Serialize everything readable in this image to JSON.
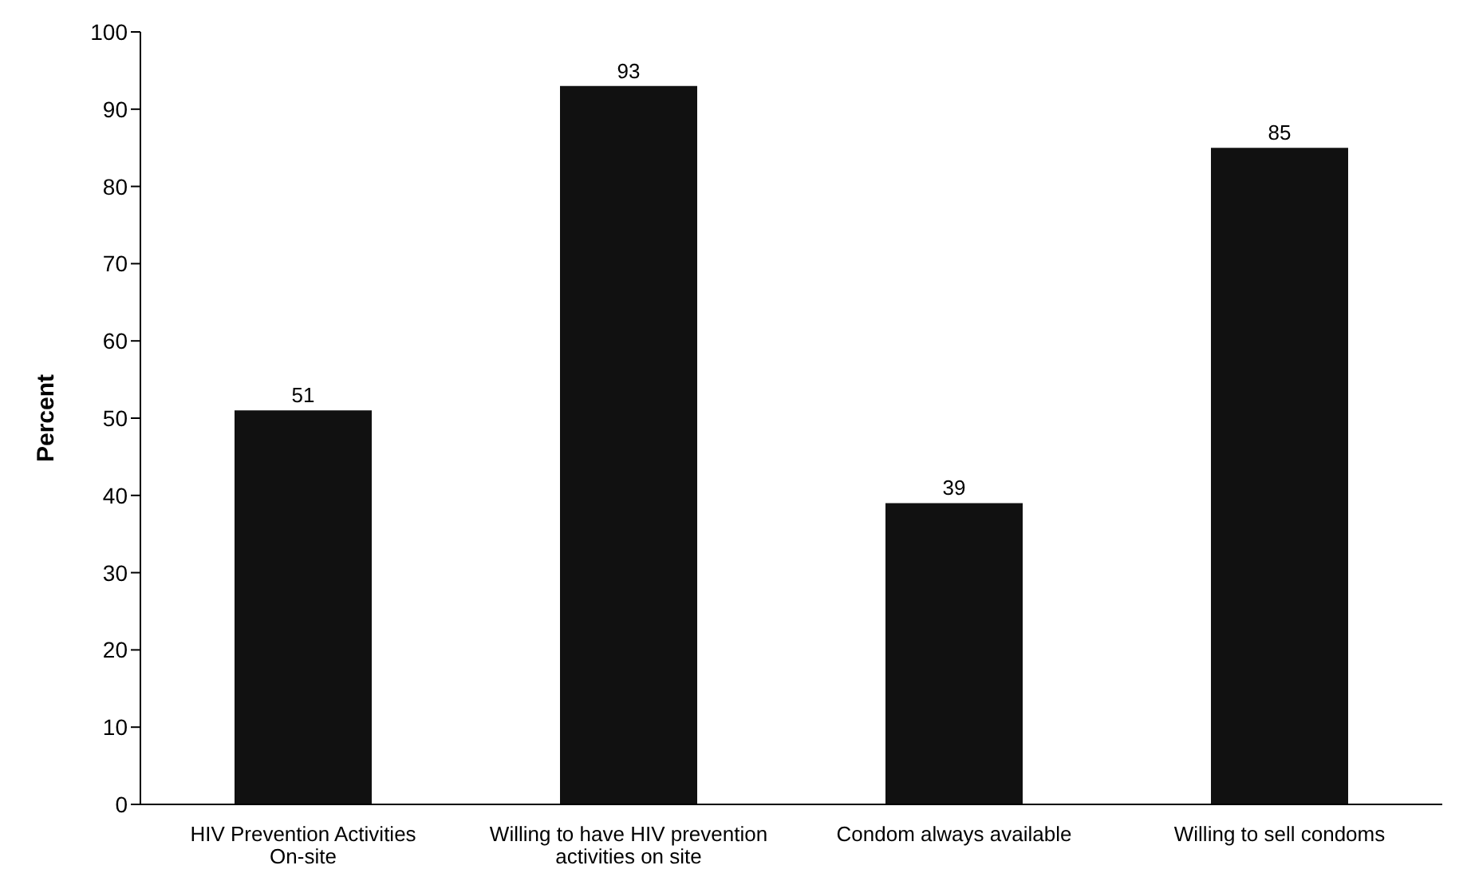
{
  "chart_data": {
    "type": "bar",
    "ylabel": "Percent",
    "categories": [
      "HIV Prevention Activities On-site",
      "Willing to have HIV prevention activities on site",
      "Condom always available",
      "Willing to sell condoms"
    ],
    "values": [
      51,
      93,
      39,
      85
    ],
    "color": "#111111",
    "ylim": [
      0,
      100
    ],
    "yticks": [
      0,
      10,
      20,
      30,
      40,
      50,
      60,
      70,
      80,
      90,
      100
    ],
    "grid": false,
    "data_labels": true
  }
}
